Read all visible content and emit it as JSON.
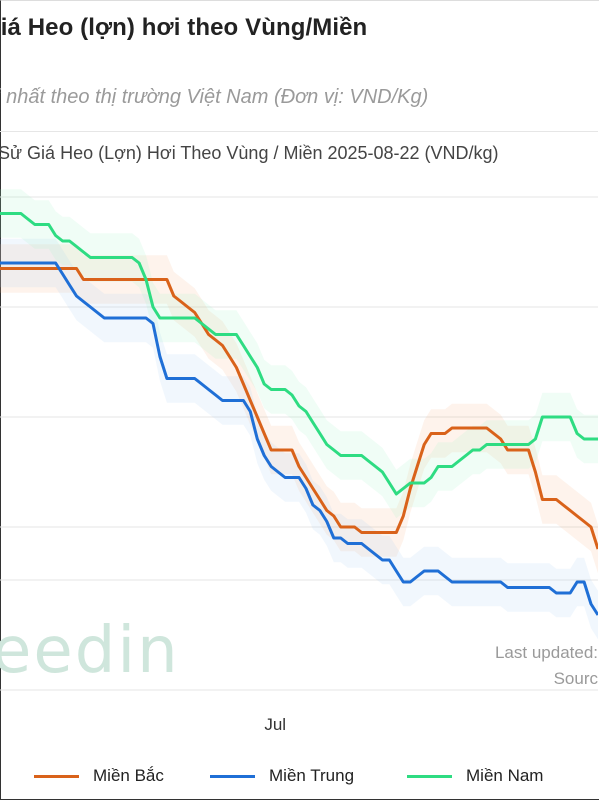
{
  "page": {
    "title": "giá Heo (lợn) hơi theo Vùng/Miền",
    "subtitle": "ới nhất theo thị trường Việt Nam (Đơn vị: VND/Kg)",
    "last_updated": "Last updated: ",
    "source": "Sourc",
    "logo_text": "eedin"
  },
  "colors": {
    "mien_bac": "#d9621a",
    "mien_trung": "#1f6fd6",
    "mien_nam": "#2edc82"
  },
  "chart_data": {
    "type": "line",
    "title": "Sử Giá Heo (Lợn) Hơi Theo Vùng / Miền 2025-08-22 (VND/kg)",
    "x_tick_labels": [
      {
        "label": "Jul",
        "index": 39
      }
    ],
    "grid": true,
    "legend": "bottom",
    "y_visible_range": [
      55,
      95
    ],
    "series": [
      {
        "name": "Miền Bắc",
        "color": "#d9621a",
        "values": [
          83.5,
          83.5,
          83.5,
          83.5,
          83.5,
          83.5,
          83.5,
          83.5,
          83.5,
          83.5,
          83.5,
          83.5,
          82.5,
          82.5,
          82.5,
          82.5,
          82.5,
          82.5,
          82.5,
          82.5,
          82.5,
          82.5,
          82.5,
          82.5,
          82.5,
          81.0,
          80.5,
          80.0,
          79.5,
          78.5,
          77.5,
          77.0,
          76.5,
          75.5,
          74.5,
          73.0,
          71.5,
          70.0,
          68.5,
          67.0,
          67.0,
          67.0,
          67.0,
          65.5,
          64.5,
          63.5,
          62.5,
          61.5,
          61.0,
          60.0,
          60.0,
          60.0,
          59.5,
          59.5,
          59.5,
          59.5,
          59.5,
          59.5,
          61.0,
          63.5,
          65.5,
          67.5,
          68.5,
          68.5,
          68.5,
          69.0,
          69.0,
          69.0,
          69.0,
          69.0,
          69.0,
          68.5,
          68.0,
          67.0,
          67.0,
          67.0,
          67.0,
          65.0,
          62.5,
          62.5,
          62.5,
          62.0,
          61.5,
          61.0,
          60.5,
          60.0,
          58.0
        ]
      },
      {
        "name": "Miền Trung",
        "color": "#1f6fd6",
        "values": [
          84.0,
          84.0,
          84.0,
          84.0,
          84.0,
          84.0,
          84.0,
          84.0,
          84.0,
          83.0,
          82.0,
          81.0,
          80.5,
          80.0,
          79.5,
          79.0,
          79.0,
          79.0,
          79.0,
          79.0,
          79.0,
          79.0,
          78.5,
          75.5,
          73.5,
          73.5,
          73.5,
          73.5,
          73.5,
          73.0,
          72.5,
          72.0,
          71.5,
          71.5,
          71.5,
          71.5,
          70.5,
          68.0,
          66.5,
          65.5,
          65.0,
          64.5,
          64.5,
          64.5,
          63.5,
          62.0,
          61.5,
          60.5,
          59.0,
          59.0,
          58.5,
          58.5,
          58.5,
          58.0,
          57.5,
          57.0,
          57.0,
          56.0,
          55.0,
          55.0,
          55.5,
          56.0,
          56.0,
          56.0,
          55.5,
          55.0,
          55.0,
          55.0,
          55.0,
          55.0,
          55.0,
          55.0,
          55.0,
          54.5,
          54.5,
          54.5,
          54.5,
          54.5,
          54.5,
          54.5,
          54.0,
          54.0,
          54.0,
          55.0,
          55.0,
          53.0,
          52.0
        ]
      },
      {
        "name": "Miền Nam",
        "color": "#2edc82",
        "values": [
          88.5,
          88.5,
          88.5,
          88.5,
          88.0,
          87.5,
          87.5,
          87.5,
          86.5,
          86.0,
          86.0,
          85.5,
          85.0,
          84.5,
          84.5,
          84.5,
          84.5,
          84.5,
          84.5,
          84.5,
          84.0,
          82.5,
          80.0,
          79.0,
          79.0,
          79.0,
          79.0,
          79.0,
          79.0,
          78.5,
          78.0,
          77.5,
          77.5,
          77.5,
          77.5,
          76.5,
          75.5,
          74.5,
          73.0,
          72.5,
          72.5,
          72.5,
          72.0,
          71.0,
          70.5,
          69.5,
          68.5,
          67.5,
          67.0,
          66.5,
          66.5,
          66.5,
          66.5,
          66.0,
          65.5,
          65.0,
          64.0,
          63.0,
          63.5,
          64.0,
          64.0,
          64.0,
          64.5,
          65.5,
          65.5,
          65.5,
          66.0,
          66.5,
          67.0,
          67.0,
          67.5,
          67.5,
          67.5,
          67.5,
          67.5,
          67.5,
          67.5,
          68.0,
          70.0,
          70.0,
          70.0,
          70.0,
          70.0,
          68.5,
          68.0,
          68.0,
          68.0
        ]
      }
    ]
  }
}
